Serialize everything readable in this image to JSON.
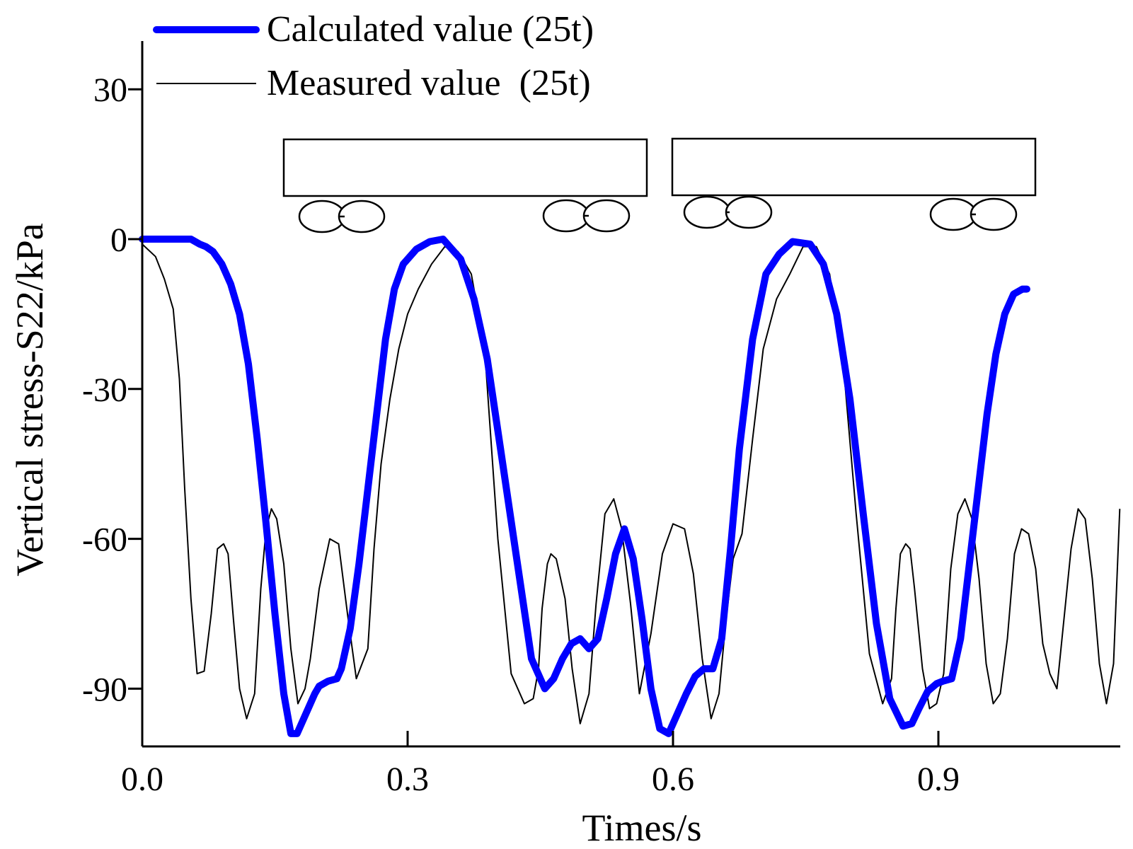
{
  "chart_data": {
    "type": "line",
    "title": "",
    "xlabel": "Times/s",
    "ylabel": "Vertical stress-S22/kPa",
    "xlim": [
      0.0,
      1.11
    ],
    "ylim": [
      -100,
      40
    ],
    "xticks": [
      0.0,
      0.3,
      0.6,
      0.9
    ],
    "xtick_labels": [
      "0.0",
      "0.3",
      "0.6",
      "0.9"
    ],
    "yticks": [
      30,
      0,
      -30,
      -60,
      -90
    ],
    "ytick_labels": [
      "30",
      "0",
      "-30",
      "-60",
      "-90"
    ],
    "grid": false,
    "legend_position": "top-left",
    "series": [
      {
        "name": "Calculated value (25t)",
        "color": "#0000ff",
        "style": "thick",
        "x": [
          0.0,
          0.055,
          0.065,
          0.072,
          0.08,
          0.09,
          0.1,
          0.11,
          0.12,
          0.13,
          0.14,
          0.15,
          0.16,
          0.168,
          0.175,
          0.185,
          0.195,
          0.2,
          0.21,
          0.22,
          0.225,
          0.235,
          0.245,
          0.255,
          0.265,
          0.275,
          0.285,
          0.295,
          0.31,
          0.325,
          0.34,
          0.36,
          0.375,
          0.39,
          0.405,
          0.42,
          0.43,
          0.44,
          0.455,
          0.465,
          0.475,
          0.485,
          0.495,
          0.505,
          0.515,
          0.525,
          0.535,
          0.545,
          0.555,
          0.565,
          0.575,
          0.585,
          0.595,
          0.605,
          0.615,
          0.625,
          0.635,
          0.645,
          0.655,
          0.665,
          0.675,
          0.69,
          0.705,
          0.72,
          0.735,
          0.755,
          0.77,
          0.785,
          0.8,
          0.815,
          0.83,
          0.845,
          0.86,
          0.87,
          0.878,
          0.888,
          0.898,
          0.905,
          0.915,
          0.925,
          0.935,
          0.945,
          0.955,
          0.965,
          0.975,
          0.985,
          0.995,
          1.0
        ],
        "y": [
          0,
          0,
          -1,
          -1.5,
          -2.5,
          -5,
          -9,
          -15,
          -25,
          -40,
          -57,
          -75,
          -91,
          -99,
          -99,
          -95,
          -91,
          -89.5,
          -88.5,
          -88,
          -86,
          -78,
          -65,
          -50,
          -35,
          -20,
          -10,
          -5,
          -2,
          -0.5,
          0,
          -4,
          -12,
          -24,
          -42,
          -60,
          -72,
          -84,
          -90,
          -88,
          -84,
          -81,
          -80,
          -82,
          -80,
          -72,
          -63,
          -58,
          -64,
          -76,
          -90,
          -98,
          -99,
          -95,
          -91,
          -87.5,
          -86,
          -86,
          -80,
          -62,
          -42,
          -20,
          -7,
          -3,
          -0.5,
          -1,
          -5,
          -15,
          -32,
          -55,
          -77,
          -92,
          -97.5,
          -97,
          -94,
          -90.5,
          -89,
          -88.5,
          -88,
          -80,
          -65,
          -50,
          -35,
          -23,
          -15,
          -11,
          -10,
          -10
        ]
      },
      {
        "name": "Measured value  (25t)",
        "color": "#000000",
        "style": "thin",
        "x": [
          0.0,
          0.015,
          0.025,
          0.035,
          0.042,
          0.048,
          0.055,
          0.062,
          0.07,
          0.078,
          0.085,
          0.092,
          0.097,
          0.103,
          0.11,
          0.118,
          0.127,
          0.134,
          0.14,
          0.146,
          0.152,
          0.16,
          0.168,
          0.176,
          0.184,
          0.19,
          0.2,
          0.212,
          0.222,
          0.232,
          0.242,
          0.255,
          0.262,
          0.27,
          0.28,
          0.29,
          0.3,
          0.312,
          0.327,
          0.342,
          0.357,
          0.372,
          0.387,
          0.402,
          0.417,
          0.432,
          0.442,
          0.448,
          0.452,
          0.458,
          0.462,
          0.468,
          0.478,
          0.486,
          0.495,
          0.505,
          0.513,
          0.523,
          0.533,
          0.542,
          0.552,
          0.562,
          0.575,
          0.588,
          0.6,
          0.613,
          0.623,
          0.633,
          0.643,
          0.652,
          0.66,
          0.668,
          0.678,
          0.69,
          0.702,
          0.717,
          0.732,
          0.747,
          0.762,
          0.777,
          0.792,
          0.807,
          0.822,
          0.837,
          0.847,
          0.852,
          0.857,
          0.863,
          0.868,
          0.873,
          0.882,
          0.89,
          0.898,
          0.906,
          0.914,
          0.922,
          0.93,
          0.938,
          0.946,
          0.954,
          0.962,
          0.97,
          0.978,
          0.986,
          0.994,
          1.002,
          1.01,
          1.018,
          1.026,
          1.034,
          1.042,
          1.05,
          1.058,
          1.066,
          1.074,
          1.082,
          1.09,
          1.098,
          1.105
        ],
        "y": [
          -1,
          -3.5,
          -8,
          -14,
          -28,
          -50,
          -72,
          -87,
          -86.5,
          -75,
          -62,
          -61,
          -63,
          -76,
          -90,
          -96,
          -91,
          -70,
          -58,
          -54,
          -56,
          -65,
          -82,
          -93,
          -90,
          -84,
          -70,
          -60,
          -61,
          -75,
          -88,
          -82,
          -62,
          -45,
          -32,
          -22,
          -15,
          -10,
          -5,
          -1.5,
          -2.5,
          -7,
          -22,
          -60,
          -87,
          -93,
          -92,
          -86,
          -74,
          -65,
          -63,
          -64,
          -72,
          -86,
          -97,
          -91,
          -73,
          -55,
          -52,
          -58,
          -73,
          -91,
          -79,
          -63,
          -57,
          -58,
          -67,
          -84,
          -96,
          -91,
          -76,
          -64,
          -59,
          -40,
          -22,
          -12,
          -7,
          -1.5,
          -1.5,
          -7,
          -24,
          -55,
          -83,
          -93,
          -88,
          -74,
          -63,
          -61,
          -62,
          -70,
          -86,
          -94,
          -93,
          -87,
          -66,
          -55,
          -52,
          -56,
          -68,
          -85,
          -93,
          -91,
          -80,
          -63,
          -58,
          -59,
          -66,
          -81,
          -87,
          -90,
          -76,
          -62,
          -54,
          -56,
          -68,
          -85,
          -93,
          -85,
          -54
        ]
      }
    ]
  }
}
